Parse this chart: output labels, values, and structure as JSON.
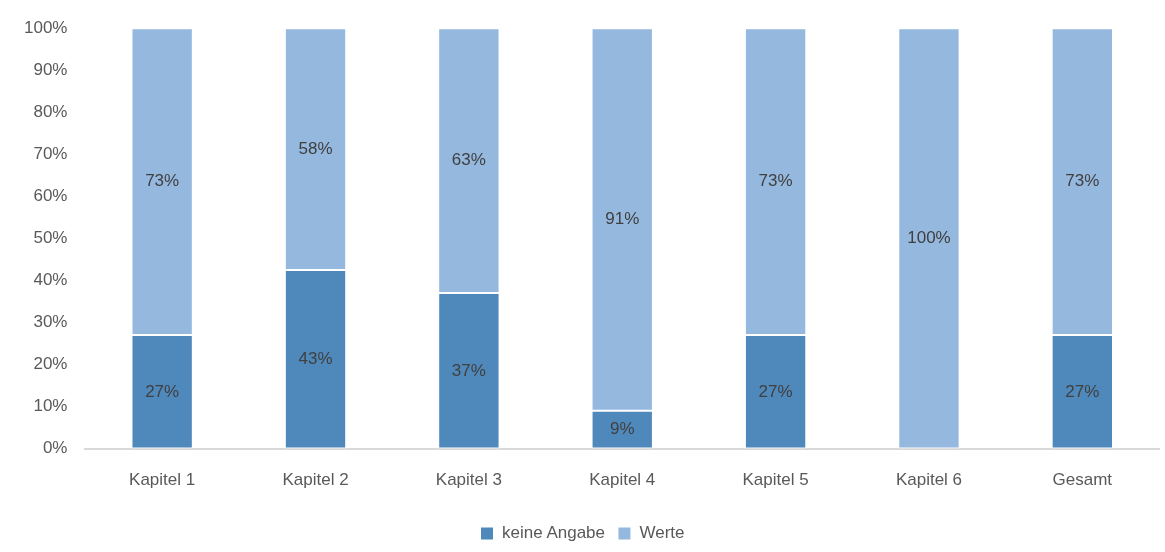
{
  "chart_data": {
    "type": "bar",
    "stacked": true,
    "categories": [
      "Kapitel 1",
      "Kapitel 2",
      "Kapitel 3",
      "Kapitel 4",
      "Kapitel 5",
      "Kapitel 6",
      "Gesamt"
    ],
    "series": [
      {
        "name": "keine Angabe",
        "color": "#4f88bb",
        "values": [
          27,
          42.5,
          37,
          9,
          27,
          0,
          27
        ],
        "value_labels": [
          "27%",
          "43%",
          "37%",
          "9%",
          "27%",
          null,
          "27%"
        ]
      },
      {
        "name": "Werte",
        "color": "#95b8df",
        "values": [
          73,
          57.5,
          63,
          91,
          73,
          100,
          73
        ],
        "value_labels": [
          "73%",
          "58%",
          "63%",
          "91%",
          "73%",
          "100%",
          "73%"
        ]
      }
    ],
    "ylim": [
      0,
      100
    ],
    "yticks": [
      {
        "value": 0,
        "label": "0%"
      },
      {
        "value": 10,
        "label": "10%"
      },
      {
        "value": 20,
        "label": "20%"
      },
      {
        "value": 30,
        "label": "30%"
      },
      {
        "value": 40,
        "label": "40%"
      },
      {
        "value": 50,
        "label": "50%"
      },
      {
        "value": 60,
        "label": "60%"
      },
      {
        "value": 70,
        "label": "70%"
      },
      {
        "value": 80,
        "label": "80%"
      },
      {
        "value": 90,
        "label": "90%"
      },
      {
        "value": 100,
        "label": "100%"
      }
    ],
    "grid": false,
    "legend": "bottom"
  }
}
